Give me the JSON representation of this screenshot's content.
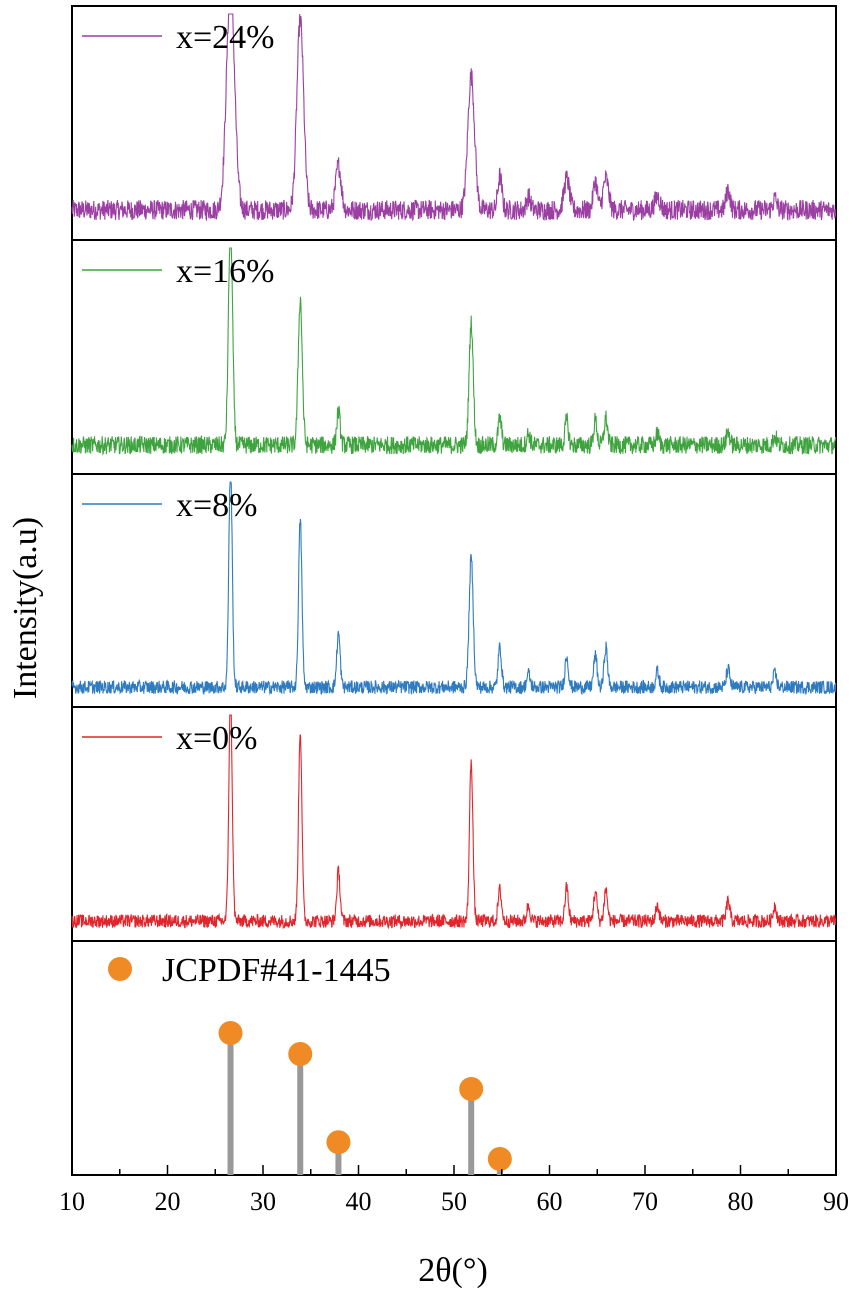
{
  "chart_data": {
    "type": "line",
    "title": "",
    "xlabel": "2θ(°)",
    "ylabel": "Intensity(a.u)",
    "xlim": [
      10,
      90
    ],
    "xticks": [
      10,
      20,
      30,
      40,
      50,
      60,
      70,
      80,
      90
    ],
    "xtick_labels": [
      "10",
      "20",
      "30",
      "40",
      "50",
      "60",
      "70",
      "80",
      "90"
    ],
    "grid": false,
    "series": [
      {
        "name": "x=24%",
        "color": "#9b3fa3",
        "baseline": 8,
        "noise": 9,
        "peak_positions": [
          26.6,
          33.9,
          37.9,
          51.8,
          54.8,
          57.8,
          61.8,
          64.8,
          65.9,
          71.3,
          78.7,
          83.6
        ],
        "peak_heights": [
          100,
          85,
          20,
          60,
          15,
          6,
          14,
          13,
          14,
          6,
          9,
          5
        ],
        "peak_widths": [
          0.6,
          0.5,
          0.4,
          0.5,
          0.3,
          0.3,
          0.4,
          0.3,
          0.4,
          0.4,
          0.3,
          0.3
        ]
      },
      {
        "name": "x=16%",
        "color": "#3fa33f",
        "baseline": 8,
        "noise": 8,
        "peak_positions": [
          26.6,
          33.9,
          37.9,
          51.8,
          54.8,
          57.8,
          61.8,
          64.8,
          65.9,
          71.3,
          78.7,
          83.6
        ],
        "peak_heights": [
          100,
          65,
          15,
          55,
          12,
          5,
          11,
          11,
          12,
          5,
          6,
          4
        ],
        "peak_widths": [
          0.3,
          0.3,
          0.25,
          0.3,
          0.25,
          0.25,
          0.25,
          0.25,
          0.25,
          0.25,
          0.25,
          0.25
        ]
      },
      {
        "name": "x=8%",
        "color": "#2f7bbf",
        "baseline": 5,
        "noise": 6,
        "peak_positions": [
          26.6,
          33.9,
          37.9,
          51.8,
          54.8,
          57.8,
          61.8,
          64.8,
          65.9,
          71.3,
          78.7,
          83.6
        ],
        "peak_heights": [
          100,
          75,
          24,
          58,
          18,
          6,
          14,
          14,
          18,
          7,
          8,
          6
        ],
        "peak_widths": [
          0.25,
          0.25,
          0.25,
          0.3,
          0.25,
          0.25,
          0.25,
          0.25,
          0.25,
          0.25,
          0.25,
          0.25
        ]
      },
      {
        "name": "x=0%",
        "color": "#e0262c",
        "baseline": 5,
        "noise": 6,
        "peak_positions": [
          26.6,
          33.9,
          37.9,
          51.8,
          54.8,
          57.8,
          61.8,
          64.8,
          65.9,
          71.3,
          78.7,
          83.6
        ],
        "peak_heights": [
          100,
          85,
          22,
          72,
          14,
          7,
          15,
          13,
          14,
          7,
          9,
          7
        ],
        "peak_widths": [
          0.25,
          0.25,
          0.25,
          0.25,
          0.25,
          0.25,
          0.25,
          0.25,
          0.25,
          0.25,
          0.25,
          0.25
        ]
      }
    ],
    "reference": {
      "name": "JCPDF#41-1445",
      "marker_color": "#f08a24",
      "stem_color": "#999999",
      "positions": [
        26.6,
        33.9,
        37.9,
        51.8,
        54.8
      ],
      "intensities": [
        100,
        85,
        22,
        60,
        10
      ]
    }
  }
}
